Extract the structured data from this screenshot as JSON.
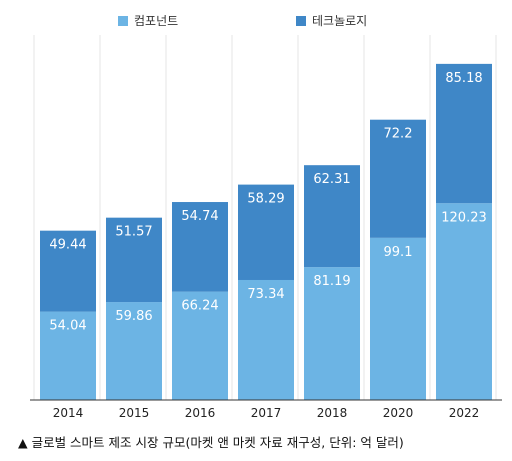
{
  "chart_data": {
    "type": "bar",
    "stacked": true,
    "categories": [
      "2014",
      "2015",
      "2016",
      "2017",
      "2018",
      "2020",
      "2022"
    ],
    "series": [
      {
        "name": "컴포넌트",
        "values": [
          54.04,
          59.86,
          66.24,
          73.34,
          81.19,
          99.1,
          120.23
        ],
        "color": "#6cb4e4"
      },
      {
        "name": "테크놀로지",
        "values": [
          49.44,
          51.57,
          54.74,
          58.29,
          62.31,
          72.2,
          85.18
        ],
        "color": "#3f87c7"
      }
    ],
    "value_labels": {
      "컴포넌트": [
        "54.04",
        "59.86",
        "66.24",
        "73.34",
        "81.19",
        "99.1",
        "120.23"
      ],
      "테크놀로지": [
        "49.44",
        "51.57",
        "54.74",
        "58.29",
        "62.31",
        "72.2",
        "85.18"
      ]
    },
    "ylim": [
      0,
      220
    ],
    "grid": "vertical",
    "legend": "top",
    "label_color": "#ffffff"
  },
  "caption": "▲ 글로벌 스마트 제조 시장 규모(마켓 앤 마켓 자료 재구성, 단위: 억 달러)"
}
